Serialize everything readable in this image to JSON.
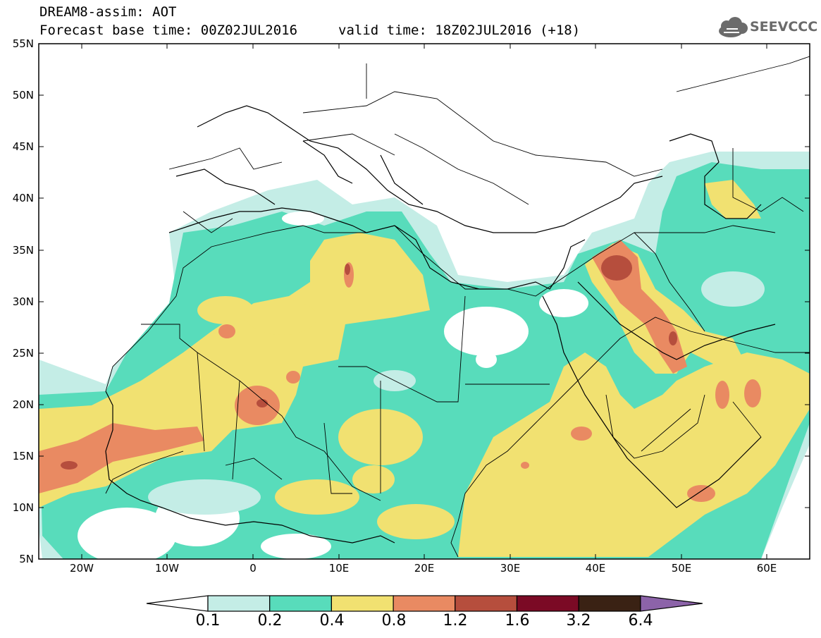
{
  "title": {
    "line1": "DREAM8-assim: AOT",
    "line2": "Forecast base time: 00Z02JUL2016",
    "valid": "valid time: 18Z02JUL2016 (+18)"
  },
  "logo": {
    "text": "SEEVCCC",
    "icon": "cloud-icon"
  },
  "map": {
    "lat_labels": [
      "55N",
      "50N",
      "45N",
      "40N",
      "35N",
      "30N",
      "25N",
      "20N",
      "15N",
      "10N",
      "5N"
    ],
    "lon_labels": [
      "20W",
      "10W",
      "0",
      "10E",
      "20E",
      "30E",
      "40E",
      "50E",
      "60E"
    ]
  },
  "colorbar": {
    "ticks": [
      "0.1",
      "0.2",
      "0.4",
      "0.8",
      "1.2",
      "1.6",
      "3.2",
      "6.4"
    ],
    "colors": [
      "#ffffff",
      "#c4ede6",
      "#58dcbb",
      "#f1e171",
      "#e98a62",
      "#b64e3d",
      "#7b0a25",
      "#3a2214",
      "#8c63a9"
    ]
  },
  "field_colors": {
    "c1": "#c4ede6",
    "c2": "#58dcbb",
    "c3": "#f1e171",
    "c4": "#e98a62",
    "c5": "#b64e3d"
  }
}
